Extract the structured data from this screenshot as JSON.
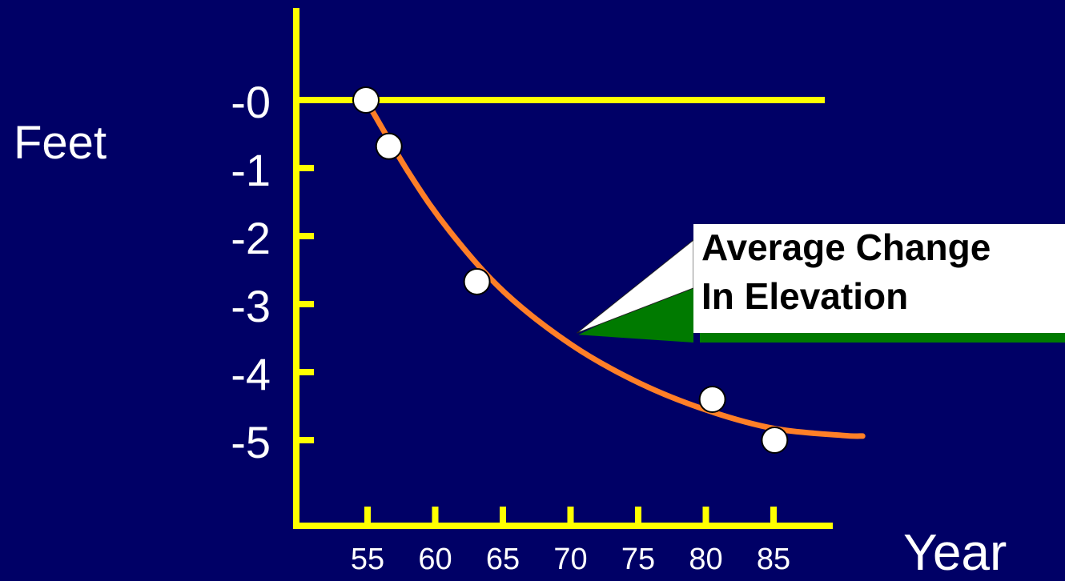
{
  "chart_data": {
    "type": "scatter",
    "ylabel": "Feet",
    "xlabel": "Year",
    "x_ticks": [
      "55",
      "60",
      "65",
      "70",
      "75",
      "80",
      "85"
    ],
    "y_ticks": [
      "-0",
      "-1",
      "-2",
      "-3",
      "-4",
      "-5"
    ],
    "xlim": [
      50,
      93
    ],
    "ylim": [
      -6.5,
      1.4
    ],
    "points": [
      {
        "x": 54.8,
        "y": 0.0
      },
      {
        "x": 56.5,
        "y": -0.68
      },
      {
        "x": 63.0,
        "y": -2.67
      },
      {
        "x": 80.4,
        "y": -4.4
      },
      {
        "x": 85.0,
        "y": -5.0
      }
    ],
    "trend_curve": [
      {
        "x": 54.8,
        "y": 0.0
      },
      {
        "x": 58,
        "y": -1.08
      },
      {
        "x": 61,
        "y": -1.93
      },
      {
        "x": 65,
        "y": -2.82
      },
      {
        "x": 70,
        "y": -3.6
      },
      {
        "x": 75,
        "y": -4.16
      },
      {
        "x": 80,
        "y": -4.56
      },
      {
        "x": 85,
        "y": -4.83
      },
      {
        "x": 90,
        "y": -4.93
      },
      {
        "x": 91.5,
        "y": -4.94
      }
    ],
    "callout": {
      "line1": "Average Change",
      "line2": "In Elevation",
      "target": {
        "x": 70.5,
        "y": -3.45
      }
    },
    "colors": {
      "background": "#000066",
      "axes": "#ffff00",
      "curve": "#ff7f27",
      "points": "#ffffff",
      "text": "#ffffff",
      "callout_fill": "#ffffff",
      "callout_shadow": "#007a00",
      "callout_text": "#000000"
    }
  }
}
